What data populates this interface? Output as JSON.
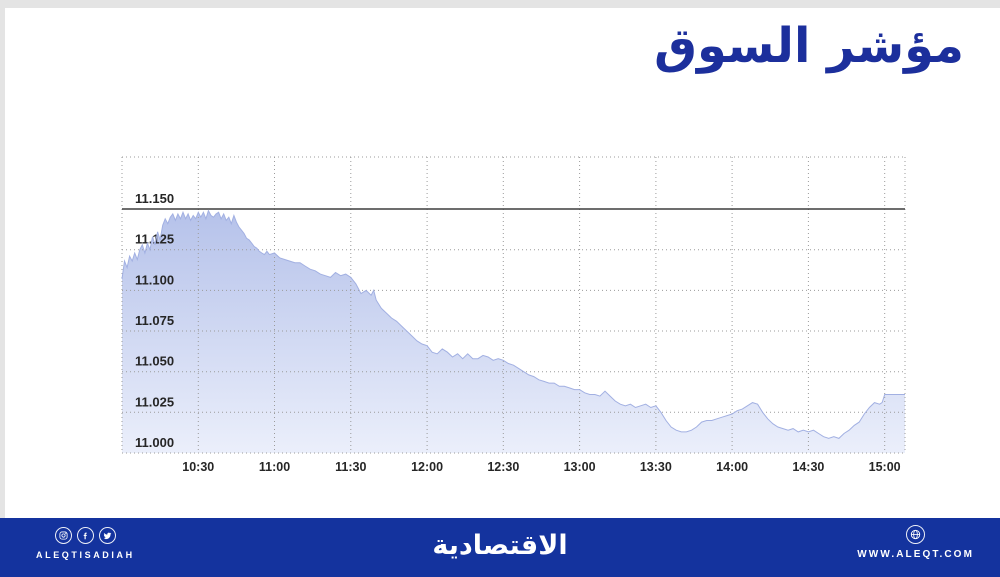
{
  "page": {
    "title": "مؤشر السوق"
  },
  "colors": {
    "title_blue": "#1c2f9c",
    "footer_blue": "#14339e",
    "frame_gray": "#e4e4e4",
    "area_top": "#b2bfe9",
    "area_bottom": "#ebeffb",
    "area_line": "#a2b0e2",
    "grid": "#9b9b9b",
    "reference_line": "#3d3d3d",
    "tick_text": "#262626"
  },
  "chart_data": {
    "type": "area",
    "title": "مؤشر السوق",
    "xlabel": "",
    "ylabel": "",
    "grid": "dotted",
    "legend_position": "none",
    "x_ticks": [
      "10:30",
      "11:00",
      "11:30",
      "12:00",
      "12:30",
      "13:00",
      "13:30",
      "14:00",
      "14:30",
      "15:00"
    ],
    "tick_minutes": [
      30,
      60,
      90,
      120,
      150,
      180,
      210,
      240,
      270,
      300
    ],
    "x_range_minutes": [
      0,
      308
    ],
    "y_tick_labels": [
      "11.150",
      "11.125",
      "11.100",
      "11.075",
      "11.050",
      "11.025",
      "11.000"
    ],
    "y_ticks": [
      11.15,
      11.125,
      11.1,
      11.075,
      11.05,
      11.025,
      11.0
    ],
    "ylim": [
      11.0,
      11.182
    ],
    "reference_line": 11.15,
    "series": [
      {
        "name": "market-index",
        "points": [
          [
            0,
            11.107
          ],
          [
            1,
            11.118
          ],
          [
            2,
            11.114
          ],
          [
            3,
            11.121
          ],
          [
            4,
            11.118
          ],
          [
            5,
            11.123
          ],
          [
            6,
            11.119
          ],
          [
            7,
            11.125
          ],
          [
            8,
            11.128
          ],
          [
            9,
            11.123
          ],
          [
            10,
            11.129
          ],
          [
            11,
            11.125
          ],
          [
            12,
            11.133
          ],
          [
            13,
            11.128
          ],
          [
            14,
            11.136
          ],
          [
            15,
            11.131
          ],
          [
            16,
            11.14
          ],
          [
            17,
            11.144
          ],
          [
            18,
            11.141
          ],
          [
            19,
            11.145
          ],
          [
            20,
            11.147
          ],
          [
            21,
            11.143
          ],
          [
            22,
            11.147
          ],
          [
            23,
            11.144
          ],
          [
            24,
            11.148
          ],
          [
            25,
            11.144
          ],
          [
            26,
            11.147
          ],
          [
            27,
            11.143
          ],
          [
            28,
            11.146
          ],
          [
            29,
            11.144
          ],
          [
            30,
            11.148
          ],
          [
            31,
            11.145
          ],
          [
            32,
            11.148
          ],
          [
            33,
            11.144
          ],
          [
            34,
            11.149
          ],
          [
            35,
            11.146
          ],
          [
            36,
            11.145
          ],
          [
            37,
            11.147
          ],
          [
            38,
            11.148
          ],
          [
            39,
            11.144
          ],
          [
            40,
            11.147
          ],
          [
            41,
            11.143
          ],
          [
            42,
            11.145
          ],
          [
            43,
            11.141
          ],
          [
            44,
            11.146
          ],
          [
            45,
            11.142
          ],
          [
            46,
            11.139
          ],
          [
            47,
            11.137
          ],
          [
            48,
            11.135
          ],
          [
            49,
            11.132
          ],
          [
            50,
            11.131
          ],
          [
            51,
            11.129
          ],
          [
            52,
            11.127
          ],
          [
            53,
            11.126
          ],
          [
            54,
            11.124
          ],
          [
            55,
            11.123
          ],
          [
            56,
            11.122
          ],
          [
            57,
            11.124
          ],
          [
            58,
            11.122
          ],
          [
            60,
            11.123
          ],
          [
            62,
            11.12
          ],
          [
            64,
            11.119
          ],
          [
            66,
            11.118
          ],
          [
            68,
            11.117
          ],
          [
            70,
            11.117
          ],
          [
            72,
            11.115
          ],
          [
            74,
            11.113
          ],
          [
            76,
            11.112
          ],
          [
            78,
            11.11
          ],
          [
            80,
            11.109
          ],
          [
            82,
            11.108
          ],
          [
            84,
            11.111
          ],
          [
            86,
            11.109
          ],
          [
            88,
            11.11
          ],
          [
            90,
            11.108
          ],
          [
            92,
            11.104
          ],
          [
            94,
            11.098
          ],
          [
            96,
            11.1
          ],
          [
            98,
            11.097
          ],
          [
            99,
            11.1
          ],
          [
            100,
            11.094
          ],
          [
            102,
            11.089
          ],
          [
            104,
            11.086
          ],
          [
            106,
            11.083
          ],
          [
            108,
            11.081
          ],
          [
            110,
            11.078
          ],
          [
            112,
            11.075
          ],
          [
            114,
            11.072
          ],
          [
            116,
            11.069
          ],
          [
            118,
            11.067
          ],
          [
            120,
            11.066
          ],
          [
            122,
            11.062
          ],
          [
            124,
            11.061
          ],
          [
            126,
            11.064
          ],
          [
            128,
            11.062
          ],
          [
            130,
            11.059
          ],
          [
            132,
            11.061
          ],
          [
            134,
            11.058
          ],
          [
            136,
            11.061
          ],
          [
            138,
            11.058
          ],
          [
            140,
            11.058
          ],
          [
            142,
            11.06
          ],
          [
            144,
            11.059
          ],
          [
            146,
            11.057
          ],
          [
            148,
            11.058
          ],
          [
            150,
            11.057
          ],
          [
            152,
            11.055
          ],
          [
            154,
            11.054
          ],
          [
            156,
            11.052
          ],
          [
            158,
            11.05
          ],
          [
            160,
            11.048
          ],
          [
            162,
            11.047
          ],
          [
            164,
            11.045
          ],
          [
            166,
            11.044
          ],
          [
            168,
            11.043
          ],
          [
            170,
            11.043
          ],
          [
            172,
            11.041
          ],
          [
            174,
            11.041
          ],
          [
            176,
            11.04
          ],
          [
            178,
            11.039
          ],
          [
            180,
            11.039
          ],
          [
            182,
            11.037
          ],
          [
            184,
            11.036
          ],
          [
            186,
            11.036
          ],
          [
            188,
            11.035
          ],
          [
            190,
            11.038
          ],
          [
            192,
            11.035
          ],
          [
            194,
            11.032
          ],
          [
            196,
            11.03
          ],
          [
            198,
            11.029
          ],
          [
            200,
            11.03
          ],
          [
            202,
            11.028
          ],
          [
            204,
            11.029
          ],
          [
            206,
            11.03
          ],
          [
            208,
            11.028
          ],
          [
            210,
            11.029
          ],
          [
            212,
            11.025
          ],
          [
            214,
            11.02
          ],
          [
            216,
            11.016
          ],
          [
            218,
            11.014
          ],
          [
            220,
            11.013
          ],
          [
            222,
            11.013
          ],
          [
            224,
            11.014
          ],
          [
            226,
            11.016
          ],
          [
            228,
            11.019
          ],
          [
            230,
            11.02
          ],
          [
            232,
            11.02
          ],
          [
            234,
            11.021
          ],
          [
            236,
            11.022
          ],
          [
            238,
            11.023
          ],
          [
            240,
            11.024
          ],
          [
            242,
            11.026
          ],
          [
            244,
            11.027
          ],
          [
            246,
            11.029
          ],
          [
            248,
            11.031
          ],
          [
            250,
            11.03
          ],
          [
            252,
            11.025
          ],
          [
            254,
            11.021
          ],
          [
            256,
            11.018
          ],
          [
            258,
            11.016
          ],
          [
            260,
            11.015
          ],
          [
            262,
            11.014
          ],
          [
            264,
            11.015
          ],
          [
            266,
            11.013
          ],
          [
            268,
            11.014
          ],
          [
            270,
            11.013
          ],
          [
            272,
            11.014
          ],
          [
            274,
            11.012
          ],
          [
            276,
            11.01
          ],
          [
            278,
            11.009
          ],
          [
            280,
            11.01
          ],
          [
            282,
            11.009
          ],
          [
            284,
            11.012
          ],
          [
            286,
            11.014
          ],
          [
            288,
            11.017
          ],
          [
            290,
            11.019
          ],
          [
            292,
            11.024
          ],
          [
            294,
            11.028
          ],
          [
            296,
            11.031
          ],
          [
            298,
            11.03
          ],
          [
            299,
            11.031
          ],
          [
            300,
            11.036
          ],
          [
            302,
            11.036
          ],
          [
            304,
            11.036
          ],
          [
            306,
            11.036
          ],
          [
            308,
            11.036
          ]
        ]
      }
    ]
  },
  "footer": {
    "brand_arabic": "الاقتصادية",
    "brand_latin": "ALEQTISADIAH",
    "website": "WWW.ALEQT.COM"
  }
}
